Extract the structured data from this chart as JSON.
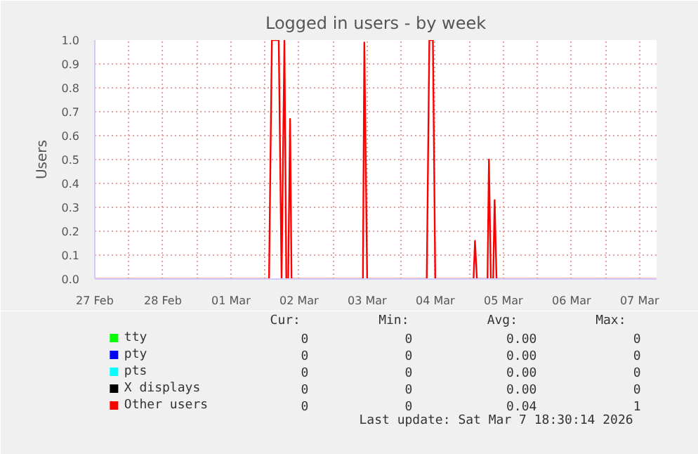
{
  "chart_data": {
    "type": "line",
    "title": "Logged in users - by week",
    "ylabel": "Users",
    "x": [
      "2026-02-27T12:00",
      "2026-03-02T01:25",
      "2026-03-02T02:25",
      "2026-03-02T04:50",
      "2026-03-02T05:50",
      "2026-03-02T06:50",
      "2026-03-02T07:30",
      "2026-03-02T08:10",
      "2026-03-02T08:50",
      "2026-03-02T09:20",
      "2026-03-03T10:30",
      "2026-03-03T11:00",
      "2026-03-03T12:00",
      "2026-03-04T09:00",
      "2026-03-04T09:55",
      "2026-03-04T11:10",
      "2026-03-04T12:00",
      "2026-03-05T01:30",
      "2026-03-05T02:00",
      "2026-03-05T02:40",
      "2026-03-05T06:25",
      "2026-03-05T06:55",
      "2026-03-05T07:35",
      "2026-03-05T08:25",
      "2026-03-05T08:55",
      "2026-03-05T09:35",
      "2026-03-07T18:00"
    ],
    "series": [
      {
        "name": "tty",
        "color": "#00ff00",
        "values": [
          null,
          null,
          null,
          null,
          null,
          null,
          null,
          null,
          null,
          null,
          null,
          null,
          null,
          null,
          null,
          null,
          null,
          null,
          null,
          null,
          null,
          null,
          null,
          null,
          null,
          null,
          null
        ]
      },
      {
        "name": "pty",
        "color": "#0000ff",
        "values": [
          null,
          null,
          null,
          null,
          null,
          null,
          null,
          null,
          null,
          null,
          null,
          null,
          null,
          null,
          null,
          null,
          null,
          null,
          null,
          null,
          null,
          null,
          null,
          null,
          null,
          null,
          null
        ]
      },
      {
        "name": "pts",
        "color": "#00ffff",
        "values": [
          null,
          null,
          null,
          null,
          null,
          null,
          null,
          null,
          null,
          null,
          null,
          null,
          null,
          null,
          null,
          null,
          null,
          null,
          null,
          null,
          null,
          null,
          null,
          null,
          null,
          null,
          null
        ]
      },
      {
        "name": "X displays",
        "color": "#000000",
        "values": [
          null,
          null,
          null,
          null,
          null,
          null,
          null,
          null,
          null,
          null,
          null,
          null,
          null,
          null,
          null,
          null,
          null,
          null,
          null,
          null,
          null,
          null,
          null,
          null,
          null,
          null,
          null
        ]
      },
      {
        "name": "Other users",
        "color": "#ff0000",
        "values": [
          0,
          0,
          1,
          1,
          0,
          1,
          0,
          0,
          0.67,
          0,
          0,
          0.99,
          0,
          0,
          1,
          1,
          0,
          0,
          0.16,
          0,
          0,
          0.5,
          0,
          0,
          0.33,
          0,
          0
        ]
      }
    ],
    "xlim": [
      "2026-02-27T12:00",
      "2026-03-07T18:00"
    ],
    "xticks": [
      {
        "value": "2026-02-27T12:00",
        "label": "27 Feb"
      },
      {
        "value": "2026-02-28T00:00",
        "label": null
      },
      {
        "value": "2026-02-28T12:00",
        "label": "28 Feb"
      },
      {
        "value": "2026-03-01T00:00",
        "label": null
      },
      {
        "value": "2026-03-01T12:00",
        "label": "01 Mar"
      },
      {
        "value": "2026-03-02T00:00",
        "label": null
      },
      {
        "value": "2026-03-02T12:00",
        "label": "02 Mar"
      },
      {
        "value": "2026-03-03T00:00",
        "label": null
      },
      {
        "value": "2026-03-03T12:00",
        "label": "03 Mar"
      },
      {
        "value": "2026-03-04T00:00",
        "label": null
      },
      {
        "value": "2026-03-04T12:00",
        "label": "04 Mar"
      },
      {
        "value": "2026-03-05T00:00",
        "label": null
      },
      {
        "value": "2026-03-05T12:00",
        "label": "05 Mar"
      },
      {
        "value": "2026-03-06T00:00",
        "label": null
      },
      {
        "value": "2026-03-06T12:00",
        "label": "06 Mar"
      },
      {
        "value": "2026-03-07T00:00",
        "label": null
      },
      {
        "value": "2026-03-07T12:00",
        "label": "07 Mar"
      }
    ],
    "ylim": [
      0,
      1.0
    ],
    "yticks": [
      {
        "value": 0,
        "label": "0.0"
      },
      {
        "value": 0.1,
        "label": "0.1"
      },
      {
        "value": 0.2,
        "label": "0.2"
      },
      {
        "value": 0.3,
        "label": "0.3"
      },
      {
        "value": 0.4,
        "label": "0.4"
      },
      {
        "value": 0.5,
        "label": "0.5"
      },
      {
        "value": 0.6,
        "label": "0.6"
      },
      {
        "value": 0.7,
        "label": "0.7"
      },
      {
        "value": 0.8,
        "label": "0.8"
      },
      {
        "value": 0.9,
        "label": "0.9"
      },
      {
        "value": 1.0,
        "label": "1.0"
      }
    ],
    "grid": true,
    "legend": "bottom",
    "annotations": [
      "Cur:",
      "Min:",
      "Avg:",
      "Max:",
      "0",
      "0",
      "0.00",
      "0",
      "0",
      "0",
      "0.00",
      "0",
      "0",
      "0",
      "0.00",
      "0",
      "0",
      "0",
      "0.00",
      "0",
      "0",
      "0",
      "0.04",
      "1",
      "Last update: Sat Mar  7 18:30:14 2026"
    ]
  }
}
